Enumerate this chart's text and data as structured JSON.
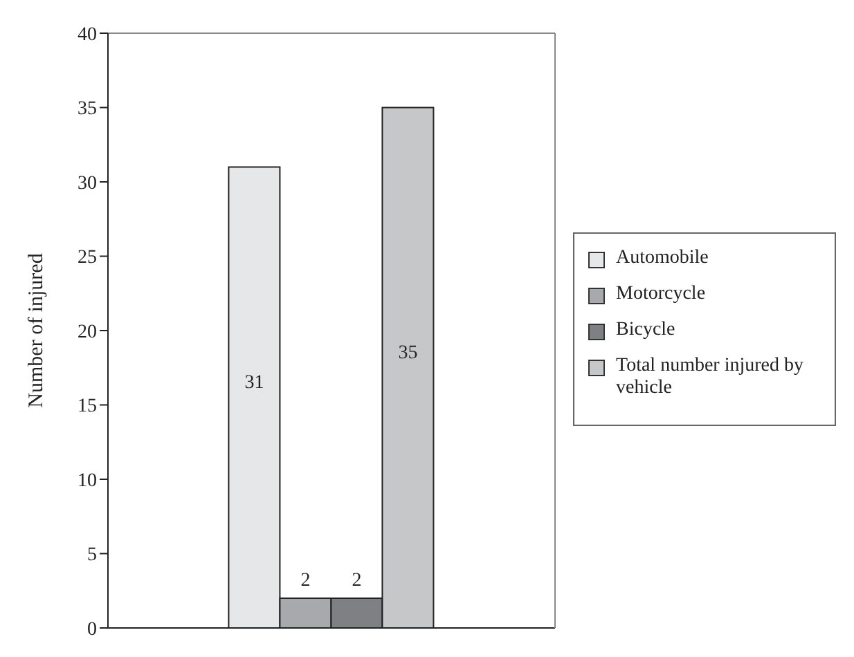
{
  "chart_data": {
    "type": "bar",
    "ylabel": "Number of injured",
    "categories": [
      null
    ],
    "series": [
      {
        "name": "Automobile",
        "color": "#e6e7e9",
        "values": [
          31
        ]
      },
      {
        "name": "Motorcycle",
        "color": "#a8a9ac",
        "values": [
          2
        ]
      },
      {
        "name": "Bicycle",
        "color": "#7f8083",
        "values": [
          2
        ]
      },
      {
        "name": "Total number injured by vehicle",
        "color": "#c6c7c9",
        "values": [
          35
        ]
      }
    ],
    "ylim": [
      0,
      40
    ],
    "yticks": [
      0,
      5,
      10,
      15,
      20,
      25,
      30,
      35,
      40
    ],
    "data_labels": true,
    "legend": "right",
    "grid": false
  }
}
